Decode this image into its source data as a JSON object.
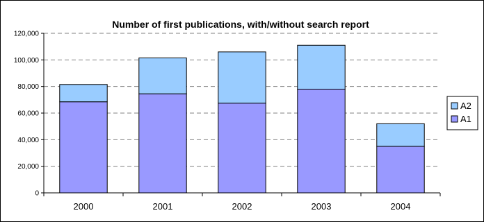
{
  "chart_data": {
    "type": "bar",
    "stacked": true,
    "title": "Number of first publications, with/without search report",
    "xlabel": "",
    "ylabel": "",
    "categories": [
      "2000",
      "2001",
      "2002",
      "2003",
      "2004"
    ],
    "series": [
      {
        "name": "A1",
        "values": [
          68500,
          74500,
          67500,
          78000,
          35000
        ],
        "color": "#9999ff"
      },
      {
        "name": "A2",
        "values": [
          13000,
          27000,
          38500,
          33000,
          17000
        ],
        "color": "#99ccff"
      }
    ],
    "ylim": [
      0,
      120000
    ],
    "yticks": [
      "0",
      "20,000",
      "40,000",
      "60,000",
      "80,000",
      "100,000",
      "120,000"
    ],
    "ytick_values": [
      0,
      20000,
      40000,
      60000,
      80000,
      100000,
      120000
    ],
    "grid": "horizontal dashed",
    "legend_position": "right",
    "legend_order": [
      "A2",
      "A1"
    ]
  }
}
